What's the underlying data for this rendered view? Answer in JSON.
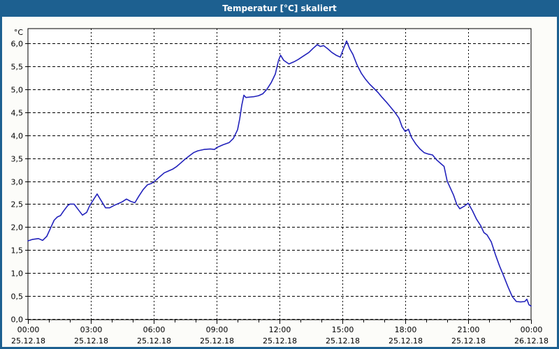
{
  "window": {
    "title": "Temperatur [°C] skaliert",
    "titlebar_color": "#1d6090",
    "border_color": "#1d6090",
    "background": "#fcfcf9"
  },
  "chart_data": {
    "type": "line",
    "title": "Temperatur [°C] skaliert",
    "ylabel": "°C",
    "xlabel": "",
    "ylim": [
      0,
      6.3
    ],
    "x_hours_range": [
      0,
      24
    ],
    "grid": "dashed",
    "legend": "none",
    "line_color": "#2222bb",
    "plot_bg": "#ffffff",
    "axis_color": "#000000",
    "yticks": [
      {
        "value": 6.0,
        "label": "6,0"
      },
      {
        "value": 5.5,
        "label": "5,5"
      },
      {
        "value": 5.0,
        "label": "5,0"
      },
      {
        "value": 4.5,
        "label": "4,5"
      },
      {
        "value": 4.0,
        "label": "4,0"
      },
      {
        "value": 3.5,
        "label": "3,5"
      },
      {
        "value": 3.0,
        "label": "3,0"
      },
      {
        "value": 2.5,
        "label": "2,5"
      },
      {
        "value": 2.0,
        "label": "2,0"
      },
      {
        "value": 1.5,
        "label": "1,5"
      },
      {
        "value": 1.0,
        "label": "1,0"
      },
      {
        "value": 0.5,
        "label": "0,5"
      },
      {
        "value": 0.0,
        "label": "0,0"
      }
    ],
    "xticks": [
      {
        "hour": 0,
        "time": "00:00",
        "date": "25.12.18"
      },
      {
        "hour": 3,
        "time": "03:00",
        "date": "25.12.18"
      },
      {
        "hour": 6,
        "time": "06:00",
        "date": "25.12.18"
      },
      {
        "hour": 9,
        "time": "09:00",
        "date": "25.12.18"
      },
      {
        "hour": 12,
        "time": "12:00",
        "date": "25.12.18"
      },
      {
        "hour": 15,
        "time": "15:00",
        "date": "25.12.18"
      },
      {
        "hour": 18,
        "time": "18:00",
        "date": "25.12.18"
      },
      {
        "hour": 21,
        "time": "21:00",
        "date": "25.12.18"
      },
      {
        "hour": 24,
        "time": "00:00",
        "date": "26.12.18"
      }
    ],
    "minor_xtick_every_hours": 1,
    "series": [
      {
        "name": "Temperatur",
        "unit": "°C",
        "points": [
          [
            0.0,
            1.7
          ],
          [
            0.2,
            1.73
          ],
          [
            0.5,
            1.75
          ],
          [
            0.7,
            1.71
          ],
          [
            0.9,
            1.8
          ],
          [
            1.1,
            2.0
          ],
          [
            1.25,
            2.15
          ],
          [
            1.4,
            2.22
          ],
          [
            1.55,
            2.25
          ],
          [
            1.7,
            2.35
          ],
          [
            1.9,
            2.47
          ],
          [
            2.0,
            2.5
          ],
          [
            2.2,
            2.5
          ],
          [
            2.4,
            2.38
          ],
          [
            2.6,
            2.26
          ],
          [
            2.8,
            2.32
          ],
          [
            2.95,
            2.47
          ],
          [
            3.1,
            2.58
          ],
          [
            3.3,
            2.72
          ],
          [
            3.5,
            2.57
          ],
          [
            3.7,
            2.42
          ],
          [
            3.9,
            2.42
          ],
          [
            4.1,
            2.47
          ],
          [
            4.3,
            2.51
          ],
          [
            4.5,
            2.55
          ],
          [
            4.7,
            2.61
          ],
          [
            4.9,
            2.56
          ],
          [
            5.1,
            2.53
          ],
          [
            5.3,
            2.68
          ],
          [
            5.5,
            2.82
          ],
          [
            5.7,
            2.92
          ],
          [
            5.9,
            2.95
          ],
          [
            6.1,
            3.02
          ],
          [
            6.3,
            3.1
          ],
          [
            6.5,
            3.18
          ],
          [
            6.7,
            3.22
          ],
          [
            6.9,
            3.26
          ],
          [
            7.1,
            3.32
          ],
          [
            7.3,
            3.4
          ],
          [
            7.5,
            3.48
          ],
          [
            7.7,
            3.55
          ],
          [
            7.9,
            3.62
          ],
          [
            8.1,
            3.66
          ],
          [
            8.4,
            3.69
          ],
          [
            8.7,
            3.7
          ],
          [
            8.9,
            3.69
          ],
          [
            9.0,
            3.73
          ],
          [
            9.3,
            3.79
          ],
          [
            9.6,
            3.84
          ],
          [
            9.8,
            3.93
          ],
          [
            10.0,
            4.12
          ],
          [
            10.1,
            4.35
          ],
          [
            10.2,
            4.65
          ],
          [
            10.3,
            4.87
          ],
          [
            10.4,
            4.82
          ],
          [
            10.6,
            4.83
          ],
          [
            10.8,
            4.84
          ],
          [
            11.0,
            4.86
          ],
          [
            11.2,
            4.9
          ],
          [
            11.4,
            5.0
          ],
          [
            11.6,
            5.14
          ],
          [
            11.8,
            5.33
          ],
          [
            11.95,
            5.62
          ],
          [
            12.05,
            5.74
          ],
          [
            12.2,
            5.63
          ],
          [
            12.45,
            5.55
          ],
          [
            12.7,
            5.6
          ],
          [
            12.9,
            5.65
          ],
          [
            13.1,
            5.71
          ],
          [
            13.4,
            5.8
          ],
          [
            13.6,
            5.89
          ],
          [
            13.8,
            5.97
          ],
          [
            13.95,
            5.93
          ],
          [
            14.1,
            5.95
          ],
          [
            14.3,
            5.88
          ],
          [
            14.5,
            5.8
          ],
          [
            14.7,
            5.74
          ],
          [
            14.9,
            5.7
          ],
          [
            15.05,
            5.88
          ],
          [
            15.2,
            6.05
          ],
          [
            15.35,
            5.88
          ],
          [
            15.5,
            5.76
          ],
          [
            15.7,
            5.53
          ],
          [
            15.9,
            5.35
          ],
          [
            16.1,
            5.22
          ],
          [
            16.3,
            5.11
          ],
          [
            16.5,
            5.02
          ],
          [
            16.7,
            4.93
          ],
          [
            16.9,
            4.82
          ],
          [
            17.1,
            4.72
          ],
          [
            17.3,
            4.61
          ],
          [
            17.5,
            4.5
          ],
          [
            17.7,
            4.37
          ],
          [
            17.85,
            4.18
          ],
          [
            18.0,
            4.08
          ],
          [
            18.15,
            4.13
          ],
          [
            18.3,
            3.95
          ],
          [
            18.5,
            3.81
          ],
          [
            18.7,
            3.7
          ],
          [
            18.9,
            3.62
          ],
          [
            19.1,
            3.59
          ],
          [
            19.3,
            3.57
          ],
          [
            19.5,
            3.46
          ],
          [
            19.7,
            3.38
          ],
          [
            19.85,
            3.32
          ],
          [
            20.0,
            3.0
          ],
          [
            20.15,
            2.85
          ],
          [
            20.3,
            2.7
          ],
          [
            20.45,
            2.5
          ],
          [
            20.6,
            2.4
          ],
          [
            20.8,
            2.45
          ],
          [
            21.0,
            2.52
          ],
          [
            21.2,
            2.36
          ],
          [
            21.4,
            2.17
          ],
          [
            21.6,
            2.03
          ],
          [
            21.75,
            1.88
          ],
          [
            21.9,
            1.83
          ],
          [
            22.1,
            1.68
          ],
          [
            22.3,
            1.4
          ],
          [
            22.5,
            1.15
          ],
          [
            22.7,
            0.93
          ],
          [
            22.9,
            0.7
          ],
          [
            23.1,
            0.49
          ],
          [
            23.3,
            0.38
          ],
          [
            23.5,
            0.37
          ],
          [
            23.7,
            0.38
          ],
          [
            23.8,
            0.43
          ],
          [
            23.9,
            0.31
          ],
          [
            24.0,
            0.28
          ]
        ]
      }
    ]
  }
}
